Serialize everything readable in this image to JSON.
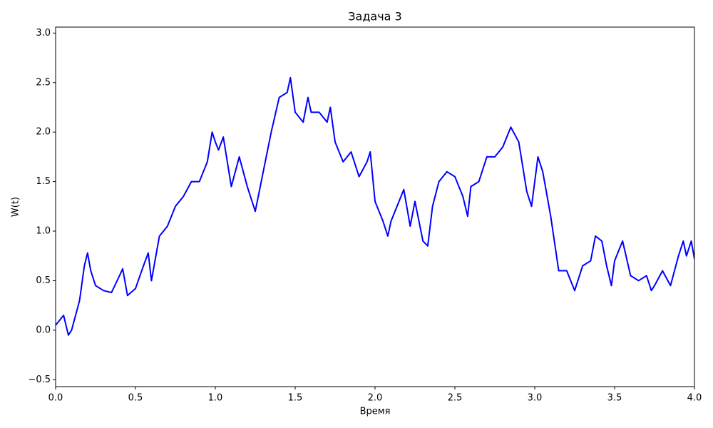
{
  "chart_data": {
    "type": "line",
    "title": "Задача 3",
    "xlabel": "Время",
    "ylabel": "W(t)",
    "x": [
      0,
      0.05,
      0.08,
      0.1,
      0.15,
      0.18,
      0.2,
      0.22,
      0.25,
      0.3,
      0.35,
      0.4,
      0.42,
      0.45,
      0.5,
      0.55,
      0.58,
      0.6,
      0.65,
      0.7,
      0.75,
      0.8,
      0.85,
      0.9,
      0.95,
      0.98,
      1.0,
      1.02,
      1.05,
      1.1,
      1.15,
      1.2,
      1.25,
      1.3,
      1.35,
      1.4,
      1.45,
      1.47,
      1.5,
      1.55,
      1.58,
      1.6,
      1.65,
      1.7,
      1.72,
      1.75,
      1.8,
      1.85,
      1.9,
      1.95,
      1.97,
      2.0,
      2.05,
      2.08,
      2.1,
      2.15,
      2.18,
      2.22,
      2.25,
      2.3,
      2.33,
      2.36,
      2.4,
      2.45,
      2.5,
      2.55,
      2.58,
      2.6,
      2.65,
      2.7,
      2.75,
      2.8,
      2.85,
      2.9,
      2.95,
      2.98,
      3.0,
      3.02,
      3.05,
      3.1,
      3.15,
      3.2,
      3.25,
      3.3,
      3.35,
      3.38,
      3.42,
      3.45,
      3.48,
      3.5,
      3.55,
      3.6,
      3.65,
      3.7,
      3.73,
      3.75,
      3.8,
      3.85,
      3.9,
      3.93,
      3.95,
      3.98,
      4.0
    ],
    "series": [
      {
        "name": "W(t)",
        "color": "#0000ff",
        "values": [
          0.05,
          0.15,
          -0.05,
          0.0,
          0.3,
          0.65,
          0.78,
          0.6,
          0.45,
          0.4,
          0.38,
          0.55,
          0.62,
          0.35,
          0.42,
          0.65,
          0.78,
          0.5,
          0.95,
          1.05,
          1.25,
          1.35,
          1.5,
          1.5,
          1.7,
          2.0,
          1.9,
          1.82,
          1.95,
          1.45,
          1.75,
          1.45,
          1.2,
          1.6,
          2.0,
          2.35,
          2.4,
          2.55,
          2.2,
          2.1,
          2.35,
          2.2,
          2.2,
          2.1,
          2.25,
          1.9,
          1.7,
          1.8,
          1.55,
          1.7,
          1.8,
          1.3,
          1.1,
          0.95,
          1.1,
          1.3,
          1.42,
          1.05,
          1.3,
          0.9,
          0.85,
          1.25,
          1.5,
          1.6,
          1.55,
          1.35,
          1.15,
          1.45,
          1.5,
          1.75,
          1.75,
          1.85,
          2.05,
          1.9,
          1.4,
          1.25,
          1.5,
          1.75,
          1.6,
          1.15,
          0.6,
          0.6,
          0.4,
          0.65,
          0.7,
          0.95,
          0.9,
          0.65,
          0.45,
          0.7,
          0.9,
          0.55,
          0.5,
          0.55,
          0.4,
          0.45,
          0.6,
          0.45,
          0.75,
          0.9,
          0.75,
          0.9,
          0.72
        ]
      }
    ],
    "xlim": [
      0,
      4
    ],
    "ylim": [
      -0.57,
      3.06
    ],
    "xticks": [
      {
        "value": 0,
        "label": "0.0"
      },
      0.5,
      {
        "value": 1,
        "label": "1.0"
      },
      1.5,
      {
        "value": 2,
        "label": "2.0"
      },
      2.5,
      {
        "value": 3,
        "label": "3.0"
      },
      3.5,
      {
        "value": 4,
        "label": "4.0"
      }
    ],
    "yticks": [
      {
        "value": -0.5,
        "label": "−0.5"
      },
      {
        "value": 0,
        "label": "0.0"
      },
      0.5,
      {
        "value": 1,
        "label": "1.0"
      },
      1.5,
      {
        "value": 2,
        "label": "2.0"
      },
      2.5,
      {
        "value": 3,
        "label": "3.0"
      }
    ],
    "grid": false
  }
}
